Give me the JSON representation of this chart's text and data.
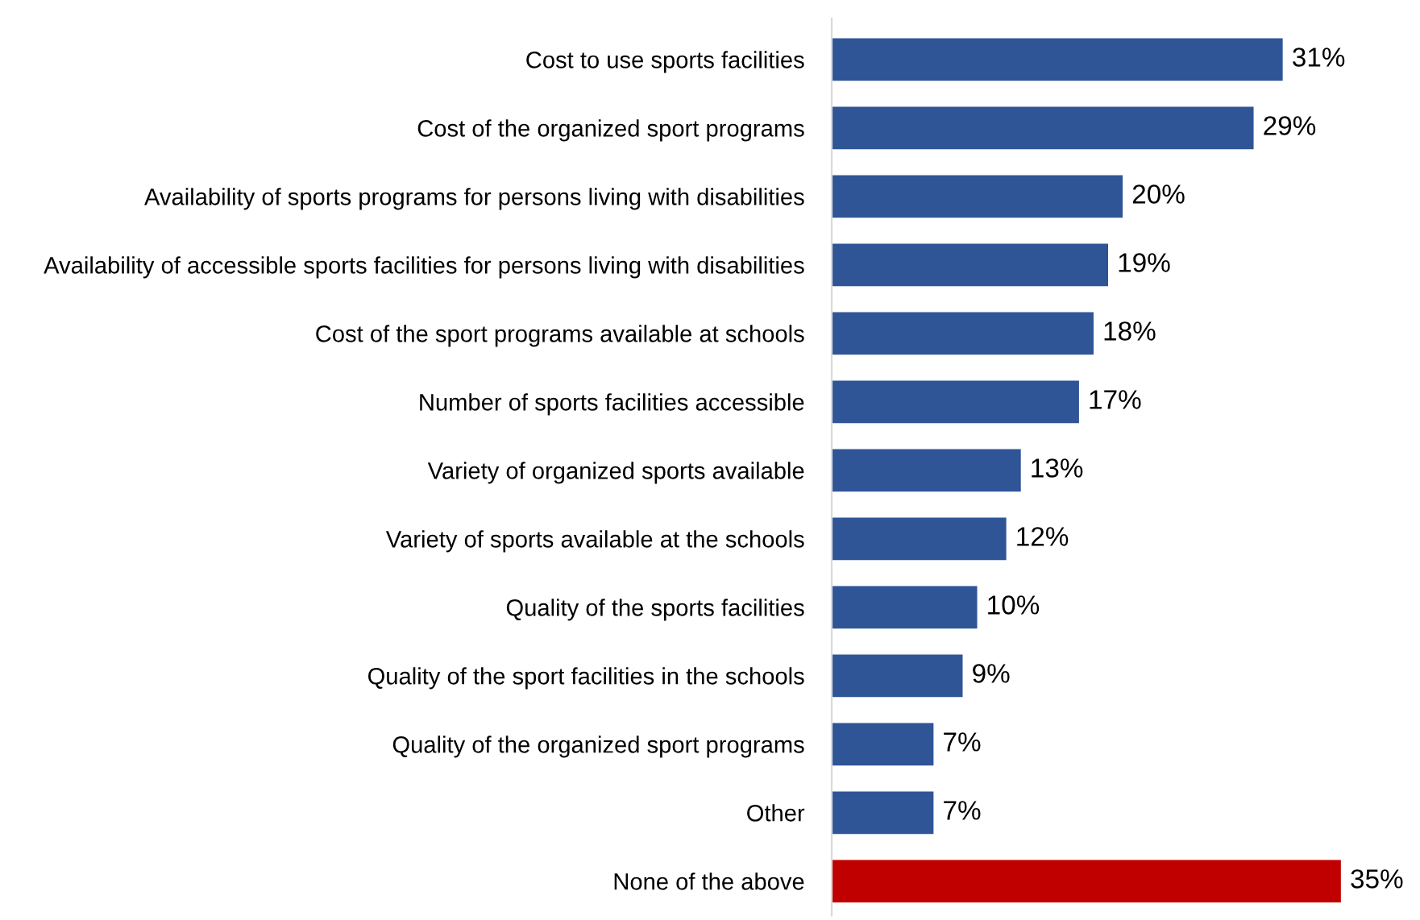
{
  "chart_data": {
    "type": "bar",
    "orientation": "horizontal",
    "categories": [
      "Cost to use sports facilities",
      "Cost of the organized sport programs",
      "Availability of sports programs for persons living with disabilities",
      "Availability of accessible sports facilities for persons living with disabilities",
      "Cost of the sport programs available at schools",
      "Number of sports facilities accessible",
      "Variety of organized sports available",
      "Variety of sports available at the schools",
      "Quality of the sports facilities",
      "Quality of the sport facilities in the schools",
      "Quality of the organized sport programs",
      "Other",
      "None of the above"
    ],
    "values": [
      31,
      29,
      20,
      19,
      18,
      17,
      13,
      12,
      10,
      9,
      7,
      7,
      35
    ],
    "value_labels": [
      "31%",
      "29%",
      "20%",
      "19%",
      "18%",
      "17%",
      "13%",
      "12%",
      "10%",
      "9%",
      "7%",
      "7%",
      "35%"
    ],
    "colors": [
      "#2f5597",
      "#2f5597",
      "#2f5597",
      "#2f5597",
      "#2f5597",
      "#2f5597",
      "#2f5597",
      "#2f5597",
      "#2f5597",
      "#2f5597",
      "#2f5597",
      "#2f5597",
      "#c00000"
    ],
    "grid": false,
    "legend": false
  }
}
